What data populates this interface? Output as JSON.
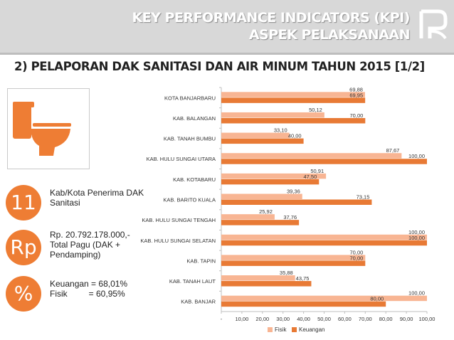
{
  "header": {
    "title_line1": "KEY PERFORMANCE INDICATORS (KPI)",
    "title_line2": "ASPEK PELAKSANAAN"
  },
  "page_title": "2) PELAPORAN DAK SANITASI DAN AIR MINUM TAHUN 2015 [1/2]",
  "icons": {
    "toilet": "toilet-icon",
    "logo": "ministry-logo"
  },
  "kpis": [
    {
      "symbol": "11",
      "text": "Kab/Kota Penerima DAK\nSanitasi"
    },
    {
      "symbol": "Rp",
      "text": "Rp. 20.792.178.000,-\nTotal Pagu (DAK +\nPendamping)"
    },
    {
      "symbol": "%",
      "text": "Keuangan = 68,01%\nFisik         = 60,95%"
    }
  ],
  "colors": {
    "fisik": "#f8b593",
    "keuangan": "#e87a35",
    "accent": "#ee7d34",
    "header": "#d8d8d8"
  },
  "chart_data": {
    "type": "bar",
    "orientation": "horizontal",
    "categories": [
      "KOTA BANJARBARU",
      "KAB. BALANGAN",
      "KAB. TANAH BUMBU",
      "KAB. HULU SUNGAI UTARA",
      "KAB. KOTABARU",
      "KAB. BARITO KUALA",
      "KAB. HULU SUNGAI TENGAH",
      "KAB. HULU SUNGAI SELATAN",
      "KAB. TAPIN",
      "KAB. TANAH LAUT",
      "KAB. BANJAR"
    ],
    "series": [
      {
        "name": "Fisik",
        "values": [
          69.88,
          50.12,
          33.1,
          87.67,
          50.91,
          39.36,
          25.92,
          100,
          70,
          35.88,
          100
        ],
        "labels": [
          "69,88",
          "50,12",
          "33,10",
          "87,67",
          "50,91",
          "39,36",
          "25,92",
          "100,00",
          "70,00",
          "35,88",
          "100,00"
        ]
      },
      {
        "name": "Keuangan",
        "values": [
          69.95,
          70,
          40,
          100,
          47.5,
          73.15,
          37.76,
          100,
          70,
          43.75,
          80
        ],
        "labels": [
          "69,95",
          "70,00",
          "40,00",
          "100,00",
          "47,50",
          "73,15",
          "37,76",
          "100,00",
          "70,00",
          "43,75",
          "80,00"
        ]
      }
    ],
    "xlim": [
      0,
      100
    ],
    "xticks": [
      "-",
      "10,00",
      "20,00",
      "30,00",
      "40,00",
      "50,00",
      "60,00",
      "70,00",
      "80,00",
      "90,00",
      "100,00"
    ],
    "legend_position": "bottom",
    "grid": false
  }
}
